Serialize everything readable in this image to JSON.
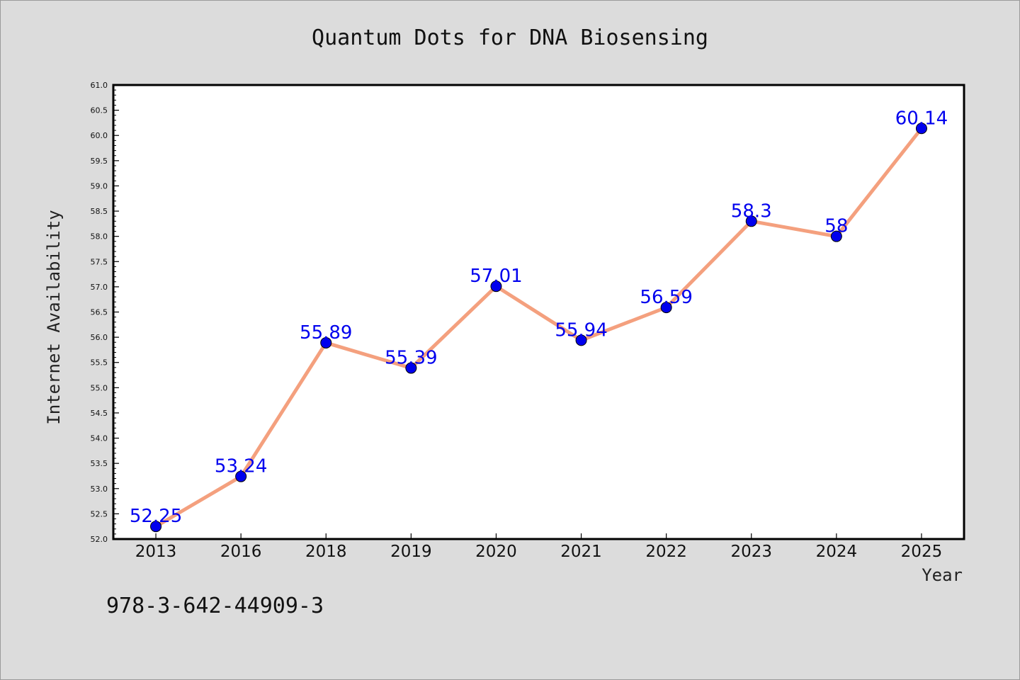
{
  "chart_data": {
    "type": "line",
    "title": "Quantum Dots for DNA Biosensing",
    "xlabel": "Year",
    "ylabel": "Internet Availability",
    "categories": [
      "2013",
      "2016",
      "2018",
      "2019",
      "2020",
      "2021",
      "2022",
      "2023",
      "2024",
      "2025"
    ],
    "series": [
      {
        "values": [
          52.25,
          53.24,
          55.89,
          55.39,
          57.01,
          55.94,
          56.59,
          58.3,
          58,
          60.14
        ],
        "labels": [
          "52.25",
          "53.24",
          "55.89",
          "55.39",
          "57.01",
          "55.94",
          "56.59",
          "58.3",
          "58",
          "60.14"
        ]
      }
    ],
    "ylim": [
      52.0,
      61.0
    ],
    "yticks": [
      "52.0",
      "52.5",
      "53.0",
      "53.5",
      "54.0",
      "54.5",
      "55.0",
      "55.5",
      "56.0",
      "56.5",
      "57.0",
      "57.5",
      "58.0",
      "58.5",
      "59.0",
      "59.5",
      "60.0",
      "60.5",
      "61.0"
    ],
    "grid": false,
    "legend": "none",
    "colors": {
      "line": "#f4a07e",
      "marker": "#0000ee",
      "label": "#0000ee"
    }
  },
  "footnote": "978-3-642-44909-3"
}
